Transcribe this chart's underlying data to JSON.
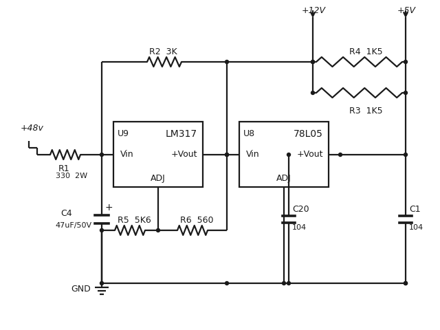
{
  "bg_color": "#ffffff",
  "line_color": "#1a1a1a",
  "lw": 1.6,
  "figsize": [
    6.4,
    4.8
  ],
  "dpi": 100,
  "labels": {
    "v48": "+48v",
    "r1": "R1",
    "r1_val": "330  2W",
    "c4": "C4",
    "c4_val": "47uF/50V",
    "c4_plus": "+",
    "r2": "R2  3K",
    "r5": "R5  5K6",
    "r6": "R6  560",
    "u9": "U9",
    "u9_model": "LM317",
    "u9_vin": "Vin",
    "u9_vout": "+Vout",
    "u9_adj": "ADJ",
    "u8": "U8",
    "u8_model": "78L05",
    "u8_vin": "Vin",
    "u8_vout": "+Vout",
    "u8_adj": "ADJ",
    "v12": "+12V",
    "v5": "+5V",
    "r4": "R4  1K5",
    "r3": "R3  1K5",
    "c20": "C20",
    "c20_val": "104",
    "c1": "C1",
    "c1_val": "104",
    "gnd": "GND"
  }
}
